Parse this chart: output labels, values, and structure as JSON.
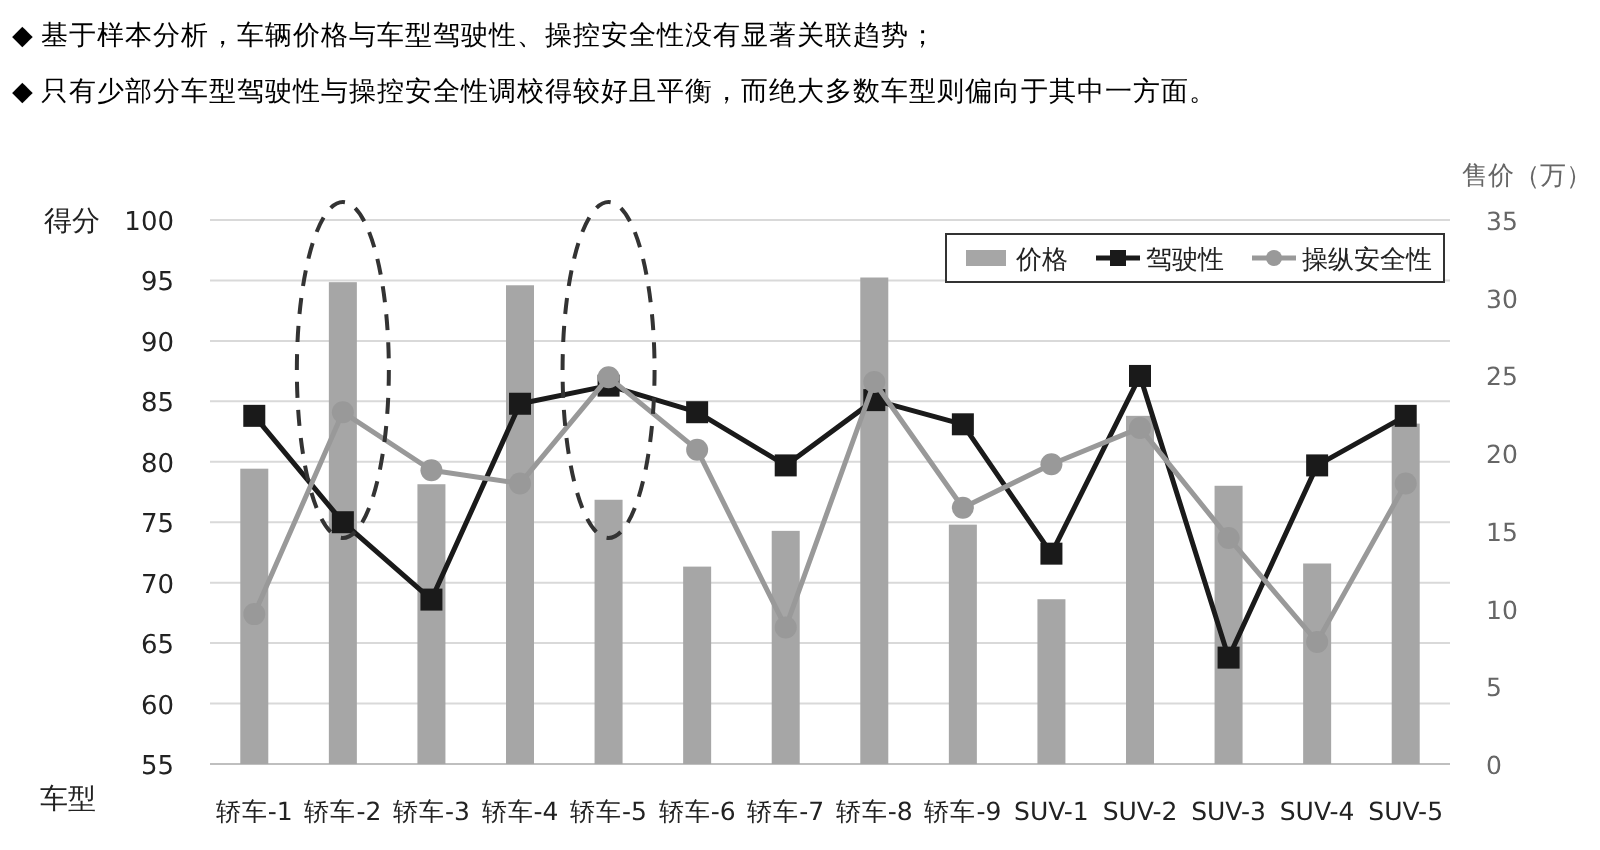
{
  "chart_data": {
    "type": "bar",
    "annotations": [
      "◆  基于样本分析，车辆价格与车型驾驶性、操控安全性没有显著关联趋势；",
      "◆  只有少部分车型驾驶性与操控安全性调校得较好且平衡，而绝大多数车型则偏向于其中一方面。"
    ],
    "xlabel": "车型",
    "ylabel": "得分",
    "y2label": "售价（万）",
    "categories": [
      "轿车-1",
      "轿车-2",
      "轿车-3",
      "轿车-4",
      "轿车-5",
      "轿车-6",
      "轿车-7",
      "轿车-8",
      "轿车-9",
      "SUV-1",
      "SUV-2",
      "SUV-3",
      "SUV-4",
      "SUV-5"
    ],
    "series": [
      {
        "name": "价格",
        "axis": "y2",
        "color": "#a6a6a6",
        "values": [
          19,
          31,
          18,
          30.8,
          17,
          12.7,
          15,
          31.3,
          15.4,
          10.6,
          22.4,
          17.9,
          12.9,
          21.9
        ]
      },
      {
        "name": "驾驶性",
        "type": "line",
        "marker": "square",
        "color": "#1a1a1a",
        "values": [
          83.8,
          75,
          68.6,
          84.8,
          86.3,
          84.1,
          79.7,
          85.1,
          83.1,
          72.4,
          87.1,
          63.8,
          79.7,
          83.8
        ]
      },
      {
        "name": "操纵安全性",
        "type": "line",
        "marker": "circle",
        "color": "#999999",
        "values": [
          67.4,
          84.1,
          79.3,
          78.2,
          87,
          81,
          66.3,
          86.6,
          76.2,
          79.8,
          82.8,
          73.7,
          65.1,
          78.2
        ]
      }
    ],
    "ylim": [
      55,
      100
    ],
    "yticks": [
      55,
      60,
      65,
      70,
      75,
      80,
      85,
      90,
      95,
      100
    ],
    "y2lim": [
      0,
      35
    ],
    "y2ticks": [
      0,
      5,
      10,
      15,
      20,
      25,
      30,
      35
    ],
    "grid": "y",
    "legend": "top right"
  }
}
